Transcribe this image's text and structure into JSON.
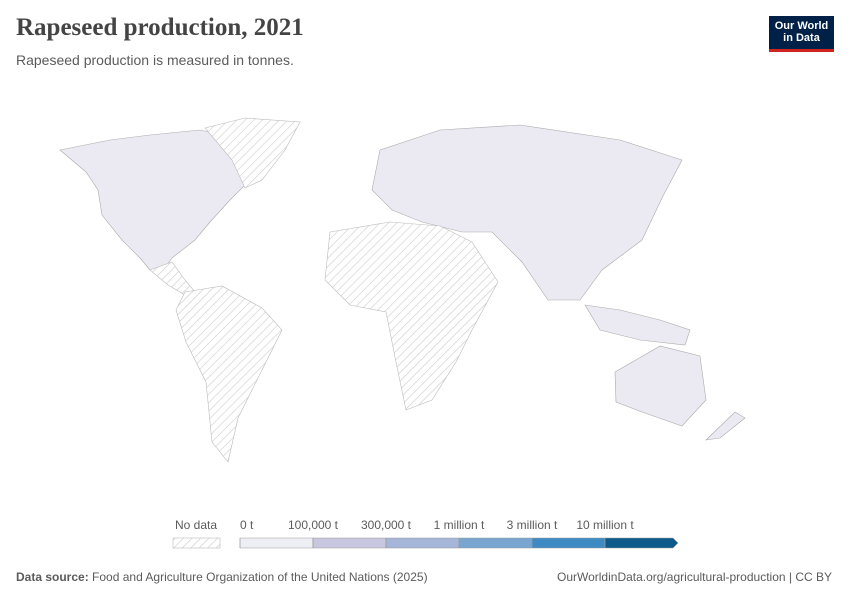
{
  "header": {
    "title": "Rapeseed production, 2021",
    "subtitle": "Rapeseed production is measured in tonnes.",
    "logo": [
      "Our World",
      "in Data"
    ]
  },
  "legend": {
    "no_data": "No data",
    "ticks": [
      {
        "value": 0,
        "label": "0 t"
      },
      {
        "value": 100000,
        "label": "100,000 t"
      },
      {
        "value": 300000,
        "label": "300,000 t"
      },
      {
        "value": 1000000,
        "label": "1 million t"
      },
      {
        "value": 3000000,
        "label": "3 million t"
      },
      {
        "value": 10000000,
        "label": "10 million t"
      }
    ],
    "colors": [
      "#eeeef5",
      "#c7c8e0",
      "#a5b6d8",
      "#78a6d0",
      "#3e8bc3",
      "#0d5a8b"
    ]
  },
  "footer": {
    "source_label": "Data source:",
    "source": "Food and Agriculture Organization of the United Nations (2025)",
    "url": "OurWorldinData.org/agricultural-production | CC BY"
  }
}
